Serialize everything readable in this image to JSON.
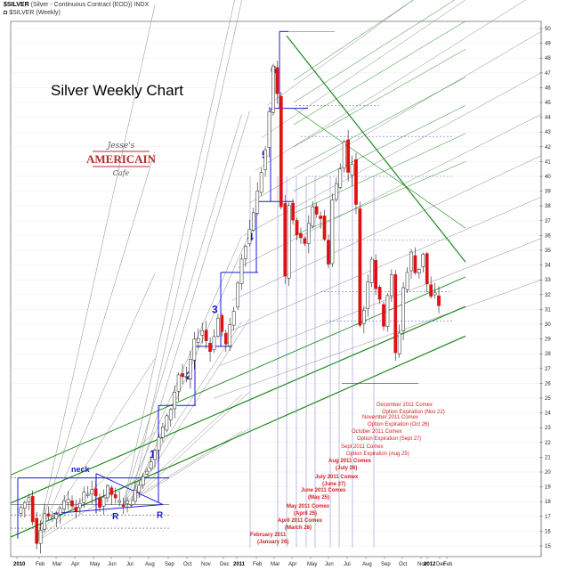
{
  "header": {
    "symbol": "$SILVER",
    "description": "(Silver - Continuous Contract (EOD)) INDX",
    "symbol_line2": "$SILVER (Weekly)"
  },
  "logo": {
    "line1": "Jesse's",
    "line2": "AMERICAIN",
    "line3": "Cafe"
  },
  "colors": {
    "up": "#ffffff",
    "down": "#e01010",
    "wave_lines": "#1a1ad4",
    "green_channel": "#1e8a1e",
    "gann_fan": "#8a8a8a",
    "annotation": "#d42020"
  },
  "chart_data": {
    "type": "candlestick",
    "title": "Silver Weekly Chart",
    "y_range": [
      14.5,
      50.5
    ],
    "y_ticks": [
      15,
      16,
      17,
      18,
      19,
      20,
      21,
      22,
      23,
      24,
      25,
      26,
      27,
      28,
      29,
      30,
      31,
      32,
      33,
      34,
      35,
      36,
      37,
      38,
      39,
      40,
      41,
      42,
      43,
      44,
      45,
      46,
      47,
      48,
      49,
      50
    ],
    "y_axis_side": "right",
    "x_labels": [
      {
        "label": "2010",
        "bold": true
      },
      {
        "label": "Feb",
        "bold": false
      },
      {
        "label": "Mar",
        "bold": false
      },
      {
        "label": "Apr",
        "bold": false
      },
      {
        "label": "May",
        "bold": false
      },
      {
        "label": "Jun",
        "bold": false
      },
      {
        "label": "Jul",
        "bold": false
      },
      {
        "label": "Aug",
        "bold": false
      },
      {
        "label": "Sep",
        "bold": false
      },
      {
        "label": "Oct",
        "bold": false
      },
      {
        "label": "Nov",
        "bold": false
      },
      {
        "label": "Dec",
        "bold": false
      },
      {
        "label": "2011",
        "bold": true
      },
      {
        "label": "Feb",
        "bold": false
      },
      {
        "label": "Mar",
        "bold": false
      },
      {
        "label": "Apr",
        "bold": false
      },
      {
        "label": "May",
        "bold": false
      },
      {
        "label": "Jun",
        "bold": false
      },
      {
        "label": "Jul",
        "bold": false
      },
      {
        "label": "Aug",
        "bold": false
      },
      {
        "label": "Sep",
        "bold": false
      },
      {
        "label": "Oct",
        "bold": false
      },
      {
        "label": "Nov",
        "bold": false
      },
      {
        "label": "Dec",
        "bold": false
      },
      {
        "label": "2012",
        "bold": true
      },
      {
        "label": "Feb",
        "bold": false
      }
    ],
    "anchors": [
      [
        0,
        17.2
      ],
      [
        3,
        18.3
      ],
      [
        5,
        15.3
      ],
      [
        7,
        17.2
      ],
      [
        9,
        16.8
      ],
      [
        11,
        17.6
      ],
      [
        13,
        18.2
      ],
      [
        15,
        17.4
      ],
      [
        17,
        18.5
      ],
      [
        19,
        18.7
      ],
      [
        21,
        17.8
      ],
      [
        23,
        18.9
      ],
      [
        25,
        18.1
      ],
      [
        27,
        17.8
      ],
      [
        29,
        18.0
      ],
      [
        31,
        19.3
      ],
      [
        33,
        20.2
      ],
      [
        35,
        21.5
      ],
      [
        37,
        23.0
      ],
      [
        39,
        24.3
      ],
      [
        41,
        26.6
      ],
      [
        43,
        26.3
      ],
      [
        45,
        28.8
      ],
      [
        47,
        29.6
      ],
      [
        49,
        28.2
      ],
      [
        51,
        30.4
      ],
      [
        53,
        28.6
      ],
      [
        55,
        31.0
      ],
      [
        57,
        34.5
      ],
      [
        59,
        36.4
      ],
      [
        61,
        38.9
      ],
      [
        63,
        41.8
      ],
      [
        64,
        44.2
      ],
      [
        65,
        47.5
      ],
      [
        66,
        45.5
      ],
      [
        67,
        38.0
      ],
      [
        68,
        33.2
      ],
      [
        69,
        38.0
      ],
      [
        71,
        36.0
      ],
      [
        73,
        35.5
      ],
      [
        75,
        37.8
      ],
      [
        77,
        37.2
      ],
      [
        79,
        34.2
      ],
      [
        80,
        38.4
      ],
      [
        82,
        40.5
      ],
      [
        83,
        42.5
      ],
      [
        84,
        40.2
      ],
      [
        85,
        41.0
      ],
      [
        86,
        38.0
      ],
      [
        87,
        30.0
      ],
      [
        88,
        31.0
      ],
      [
        89,
        33.0
      ],
      [
        90,
        34.5
      ],
      [
        91,
        32.5
      ],
      [
        92,
        31.5
      ],
      [
        93,
        30.0
      ],
      [
        94,
        32.0
      ],
      [
        95,
        33.2
      ],
      [
        96,
        28.0
      ],
      [
        97,
        29.5
      ],
      [
        98,
        32.5
      ],
      [
        99,
        33.5
      ],
      [
        100,
        34.8
      ],
      [
        101,
        33.5
      ],
      [
        102,
        33.8
      ],
      [
        103,
        34.8
      ],
      [
        104,
        32.7
      ],
      [
        105,
        31.8
      ],
      [
        106,
        32.0
      ],
      [
        107,
        31.3
      ]
    ],
    "wave_labels": [
      "1",
      "2",
      "3",
      "4",
      "5",
      "6"
    ],
    "pattern_labels": {
      "neck": "neck",
      "r_left": "R",
      "r_right": "R"
    },
    "annotations": [
      {
        "lines": [
          "February 2011",
          "(January 26)"
        ]
      },
      {
        "lines": [
          "April 2011 Comex",
          "(March 28)"
        ]
      },
      {
        "lines": [
          "May 2011 Comex",
          "(April 25)"
        ]
      },
      {
        "lines": [
          "June 2011 Comex",
          "(May 25)"
        ]
      },
      {
        "lines": [
          "July 2011 Comex",
          "(June 27)"
        ]
      },
      {
        "lines": [
          "Aug 2011 Comex",
          "(July 26)"
        ]
      },
      {
        "lines": [
          "Sept 2011 Comex",
          "Option Expiration (Aug 25)"
        ]
      },
      {
        "lines": [
          "October 2011 Comex",
          "Option Expiration (Sept 27)"
        ]
      },
      {
        "lines": [
          "November 2011 Comex",
          "Option Expiration (Oct 26)"
        ]
      },
      {
        "lines": [
          "December 2011 Comex",
          "Option Expiration (Nov 22)"
        ]
      }
    ]
  }
}
